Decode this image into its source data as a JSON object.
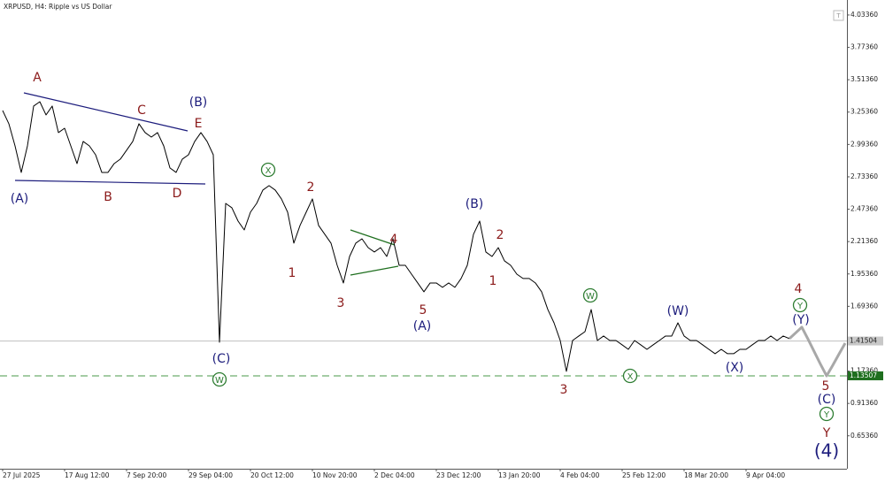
{
  "chart_data": {
    "type": "line",
    "title": "XRPUSD, H4:  Ripple vs US Dollar",
    "categories": [
      "27 Jul 2025",
      null,
      null,
      null,
      null,
      null,
      null,
      null,
      null,
      null,
      "17 Aug 12:00",
      null,
      null,
      null,
      null,
      null,
      null,
      null,
      null,
      null,
      "7 Sep 20:00",
      null,
      null,
      null,
      null,
      null,
      null,
      null,
      null,
      null,
      "29 Sep 04:00",
      null,
      null,
      null,
      null,
      null,
      null,
      null,
      null,
      null,
      "20 Oct 12:00",
      null,
      null,
      null,
      null,
      null,
      null,
      null,
      null,
      null,
      "10 Nov 20:00",
      null,
      null,
      null,
      null,
      null,
      null,
      null,
      null,
      null,
      "2 Dec 04:00",
      null,
      null,
      null,
      null,
      null,
      null,
      null,
      null,
      null,
      "23 Dec 12:00",
      null,
      null,
      null,
      null,
      null,
      null,
      null,
      null,
      null,
      "13 Jan 20:00",
      null,
      null,
      null,
      null,
      null,
      null,
      null,
      null,
      null,
      "4 Feb 04:00",
      null,
      null,
      null,
      null,
      null,
      null,
      null,
      null,
      null,
      "25 Feb 12:00",
      null,
      null,
      null,
      null,
      null,
      null,
      null,
      null,
      null,
      "18 Mar 20:00",
      null,
      null,
      null,
      null,
      null,
      null,
      null,
      null,
      null,
      "9 Apr 04:00",
      null,
      null,
      null,
      null,
      null,
      null,
      null,
      null,
      null,
      null,
      null,
      null,
      null,
      null,
      null,
      null
    ],
    "series": [
      {
        "color": "#000000",
        "width": 1,
        "values": [
          3.266,
          3.16,
          2.982,
          2.769,
          2.982,
          3.302,
          3.337,
          3.231,
          3.302,
          3.089,
          3.124,
          2.982,
          2.84,
          3.018,
          2.982,
          2.911,
          2.769,
          2.769,
          2.84,
          2.876,
          2.947,
          3.018,
          3.16,
          3.089,
          3.053,
          3.089,
          2.982,
          2.805,
          2.769,
          2.876,
          2.911,
          3.018,
          3.089,
          3.018,
          2.911,
          1.405,
          2.52,
          2.485,
          2.378,
          2.307,
          2.45,
          2.52,
          2.627,
          2.663,
          2.627,
          2.556,
          2.45,
          2.201,
          2.343,
          2.45,
          2.556,
          2.343,
          2.272,
          2.201,
          2.023,
          1.881,
          2.094,
          2.201,
          2.236,
          2.165,
          2.13,
          2.165,
          2.094,
          2.236,
          2.023,
          2.023,
          1.952,
          1.881,
          1.81,
          1.881,
          1.881,
          1.846,
          1.881,
          1.846,
          1.917,
          2.023,
          2.272,
          2.378,
          2.13,
          2.094,
          2.165,
          2.059,
          2.023,
          1.952,
          1.917,
          1.917,
          1.881,
          1.81,
          1.668,
          1.561,
          1.419,
          1.171,
          1.419,
          1.455,
          1.49,
          1.668,
          1.419,
          1.455,
          1.419,
          1.419,
          1.384,
          1.348,
          1.419,
          1.384,
          1.348,
          1.384,
          1.419,
          1.455,
          1.455,
          1.561,
          1.455,
          1.419,
          1.419,
          1.384,
          1.348,
          1.313,
          1.348,
          1.313,
          1.313,
          1.348,
          1.348,
          1.384,
          1.419,
          1.419,
          1.455,
          1.419,
          1.455,
          1.434,
          null,
          null,
          null,
          null,
          null,
          null,
          null,
          null,
          null
        ]
      },
      {
        "color": "#a8a8a8",
        "width": 3,
        "values": [
          null,
          null,
          null,
          null,
          null,
          null,
          null,
          null,
          null,
          null,
          null,
          null,
          null,
          null,
          null,
          null,
          null,
          null,
          null,
          null,
          null,
          null,
          null,
          null,
          null,
          null,
          null,
          null,
          null,
          null,
          null,
          null,
          null,
          null,
          null,
          null,
          null,
          null,
          null,
          null,
          null,
          null,
          null,
          null,
          null,
          null,
          null,
          null,
          null,
          null,
          null,
          null,
          null,
          null,
          null,
          null,
          null,
          null,
          null,
          null,
          null,
          null,
          null,
          null,
          null,
          null,
          null,
          null,
          null,
          null,
          null,
          null,
          null,
          null,
          null,
          null,
          null,
          null,
          null,
          null,
          null,
          null,
          null,
          null,
          null,
          null,
          null,
          null,
          null,
          null,
          null,
          null,
          null,
          null,
          null,
          null,
          null,
          null,
          null,
          null,
          null,
          null,
          null,
          null,
          null,
          null,
          null,
          null,
          null,
          null,
          null,
          null,
          null,
          null,
          null,
          null,
          null,
          null,
          null,
          null,
          null,
          null,
          null,
          null,
          null,
          null,
          null,
          1.434,
          1.48,
          1.526,
          1.43,
          1.33,
          1.23,
          1.135,
          1.22,
          1.31,
          1.398
        ]
      }
    ],
    "ylim": [
      0.389,
      4.154
    ],
    "yticks": [
      {
        "value": 4.0336,
        "label": "4.03360"
      },
      {
        "value": 3.7736,
        "label": "3.77360"
      },
      {
        "value": 3.5136,
        "label": "3.51360"
      },
      {
        "value": 3.2536,
        "label": "3.25360"
      },
      {
        "value": 2.9936,
        "label": "2.99360"
      },
      {
        "value": 2.7336,
        "label": "2.73360"
      },
      {
        "value": 2.4736,
        "label": "2.47360"
      },
      {
        "value": 2.2136,
        "label": "2.21360"
      },
      {
        "value": 1.9536,
        "label": "1.95360"
      },
      {
        "value": 1.6936,
        "label": "1.69360"
      },
      {
        "value": 1.1736,
        "label": "1.17360"
      },
      {
        "value": 0.9136,
        "label": "0.91360"
      },
      {
        "value": 0.6536,
        "label": "0.65360"
      }
    ],
    "price_lines": [
      {
        "value": 1.41504,
        "color": "#c0c0c0",
        "label_bg": "#c8c8c8",
        "dashed": false
      },
      {
        "value": 1.13507,
        "color": "#4a9a4a",
        "label_bg": "#1f6f1f",
        "dashed": true
      }
    ],
    "annotations": [
      {
        "text": "A",
        "color": "#8b1a1a"
      },
      {
        "text": "(A)",
        "color": "#1c1c7c"
      },
      {
        "text": "B",
        "color": "#8b1a1a"
      },
      {
        "text": "C",
        "color": "#8b1a1a"
      },
      {
        "text": "D",
        "color": "#8b1a1a"
      },
      {
        "text": "(B)",
        "color": "#1c1c7c"
      },
      {
        "text": "E",
        "color": "#8b1a1a"
      },
      {
        "text": "X",
        "color": "#2e7d32",
        "circled": true
      },
      {
        "text": "2",
        "color": "#8b1a1a"
      },
      {
        "text": "1",
        "color": "#8b1a1a"
      },
      {
        "text": "3",
        "color": "#8b1a1a"
      },
      {
        "text": "4",
        "color": "#8b1a1a"
      },
      {
        "text": "5",
        "color": "#8b1a1a"
      },
      {
        "text": "(A)",
        "color": "#1c1c7c"
      },
      {
        "text": "(B)",
        "color": "#1c1c7c"
      },
      {
        "text": "2",
        "color": "#8b1a1a"
      },
      {
        "text": "1",
        "color": "#8b1a1a"
      },
      {
        "text": "W",
        "color": "#2e7d32",
        "circled": true
      },
      {
        "text": "(W)",
        "color": "#1c1c7c"
      },
      {
        "text": "3",
        "color": "#8b1a1a"
      },
      {
        "text": "X",
        "color": "#2e7d32",
        "circled": true
      },
      {
        "text": "(X)",
        "color": "#1c1c7c"
      },
      {
        "text": "4",
        "color": "#8b1a1a"
      },
      {
        "text": "Y",
        "color": "#2e7d32",
        "circled": true
      },
      {
        "text": "(Y)",
        "color": "#1c1c7c"
      },
      {
        "text": "(C)",
        "color": "#1c1c7c"
      },
      {
        "text": "W",
        "color": "#2e7d32",
        "circled": true
      },
      {
        "text": "5",
        "color": "#8b1a1a"
      },
      {
        "text": "(C)",
        "color": "#1c1c7c"
      },
      {
        "text": "Y",
        "color": "#2e7d32",
        "circled": true
      },
      {
        "text": "Y",
        "color": "#8b1a1a"
      },
      {
        "text": "(4)",
        "color": "#1c1c7c",
        "large": true
      }
    ]
  }
}
